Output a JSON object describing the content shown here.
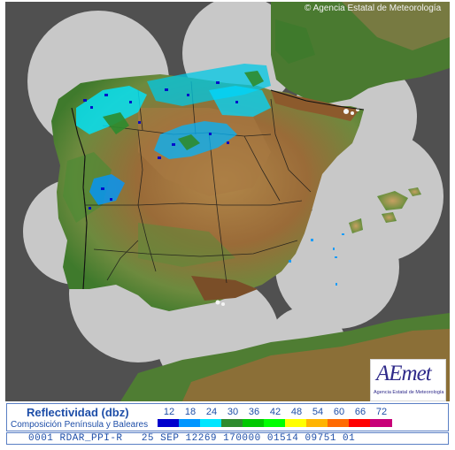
{
  "map": {
    "copyright": "© Agencia Estatal de Meteorología",
    "colors": {
      "sea": "#505050",
      "radar_coverage": "#c8c8c8",
      "land_low": "#3f7a2c",
      "land_mid": "#b78b4a",
      "land_high": "#8c5a2c",
      "snow": "#f4f4f4",
      "borders": "#1a1a1a"
    }
  },
  "logo": {
    "wordmark": "AEmet",
    "subtitle": "Agencia Estatal de Meteorología"
  },
  "legend": {
    "title": "Reflectividad (dbz)",
    "subtitle": "Composición Península y Baleares",
    "levels": [
      {
        "value": "12",
        "color": "#0000cc"
      },
      {
        "value": "18",
        "color": "#0096ff"
      },
      {
        "value": "24",
        "color": "#00e6ff"
      },
      {
        "value": "30",
        "color": "#2e8b2e"
      },
      {
        "value": "36",
        "color": "#00c800"
      },
      {
        "value": "42",
        "color": "#00ff00"
      },
      {
        "value": "48",
        "color": "#ffff00"
      },
      {
        "value": "54",
        "color": "#ffb400"
      },
      {
        "value": "60",
        "color": "#ff6a00"
      },
      {
        "value": "66",
        "color": "#ff0000"
      },
      {
        "value": "72",
        "color": "#c80078"
      }
    ]
  },
  "status": {
    "text": "0001 RDAR_PPI-R   25 SEP 12269 170000 01514 09751 01"
  }
}
